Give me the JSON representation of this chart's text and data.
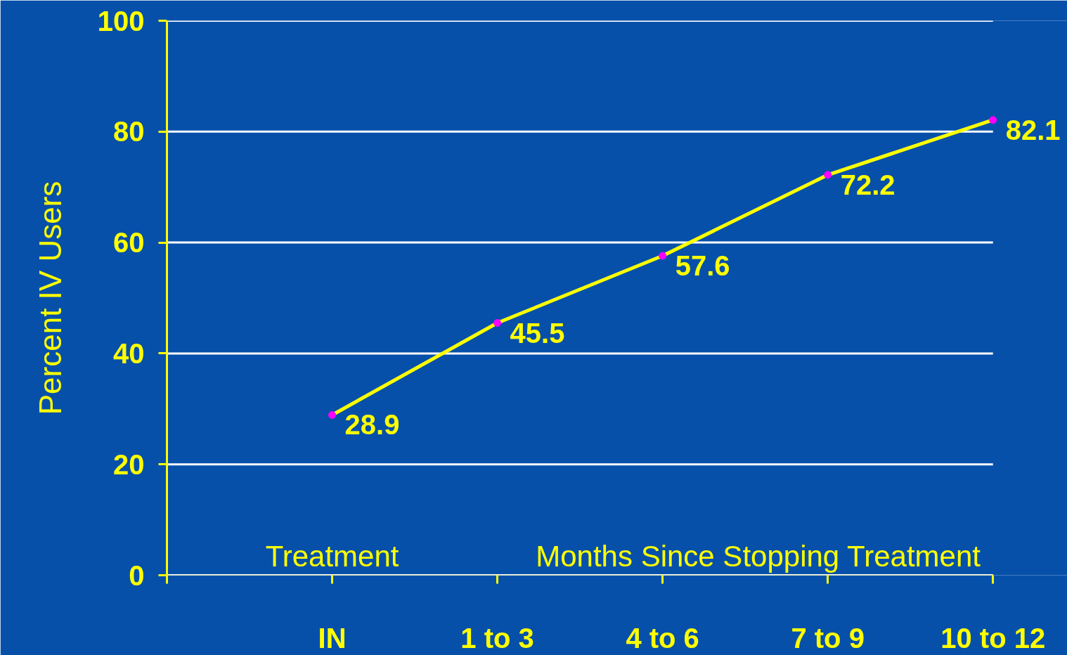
{
  "chart_data": {
    "type": "line",
    "categories": [
      "IN",
      "1 to 3",
      "4 to 6",
      "7 to 9",
      "10 to 12"
    ],
    "ylabel": "Percent IV Users",
    "annotations": [
      "Treatment",
      "Months Since Stopping Treatment"
    ],
    "series": [
      {
        "color": "#ffff00",
        "values": [
          28.9,
          45.5,
          57.6,
          72.2,
          82.1
        ]
      }
    ],
    "ylim": [
      0,
      100
    ],
    "yticks": [
      0,
      20,
      40,
      60,
      80,
      100
    ],
    "grid": "y",
    "marker": "circle",
    "line_style": "solid",
    "data_labels": true
  }
}
